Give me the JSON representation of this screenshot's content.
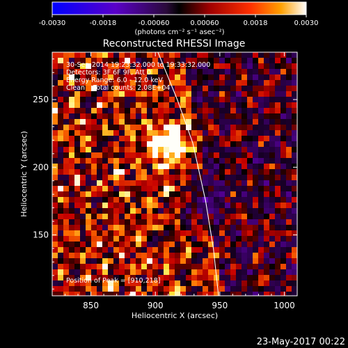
{
  "colorbar": {
    "ticks": [
      "-0.0030",
      "-0.0018",
      "-0.00060",
      "0.00060",
      "0.0018",
      "0.0030"
    ],
    "tick_values": [
      -0.003,
      -0.0018,
      -0.0006,
      0.0006,
      0.0018,
      0.003
    ],
    "range": [
      -0.003,
      0.003
    ],
    "unit_label": "(photons cm⁻² s⁻¹ asec⁻²)"
  },
  "chart_data": {
    "type": "heatmap",
    "title": "Reconstructed RHESSI Image",
    "xlabel": "Heliocentric X (arcsec)",
    "ylabel": "Heliocentric Y (arcsec)",
    "xlim": [
      820,
      1010
    ],
    "ylim": [
      105,
      285
    ],
    "x_ticks": [
      850,
      900,
      950,
      1000
    ],
    "y_ticks": [
      150,
      200,
      250
    ],
    "peak": {
      "x": 910,
      "y": 218
    },
    "limb_curve": [
      [
        902,
        285
      ],
      [
        917,
        250
      ],
      [
        929,
        218
      ],
      [
        939,
        175
      ],
      [
        945,
        140
      ],
      [
        949,
        105
      ]
    ],
    "grid": false,
    "colormap": "hot"
  },
  "info_lines": [
    "30-Sep-2014 19:23:32.000 to 19:33:32.000",
    "Detectors: 3F 6F 9F, Att 0",
    "Energy Range: 6.0 - 12.0 keV",
    "Clean    Total counts: 2.08E+04"
  ],
  "peak_label": "Position of Peak = [910,218]",
  "footer_date": "23-May-2017 00:22",
  "colors": {
    "background": "#000000",
    "text": "#ffffff",
    "limb": "#ffffff"
  }
}
